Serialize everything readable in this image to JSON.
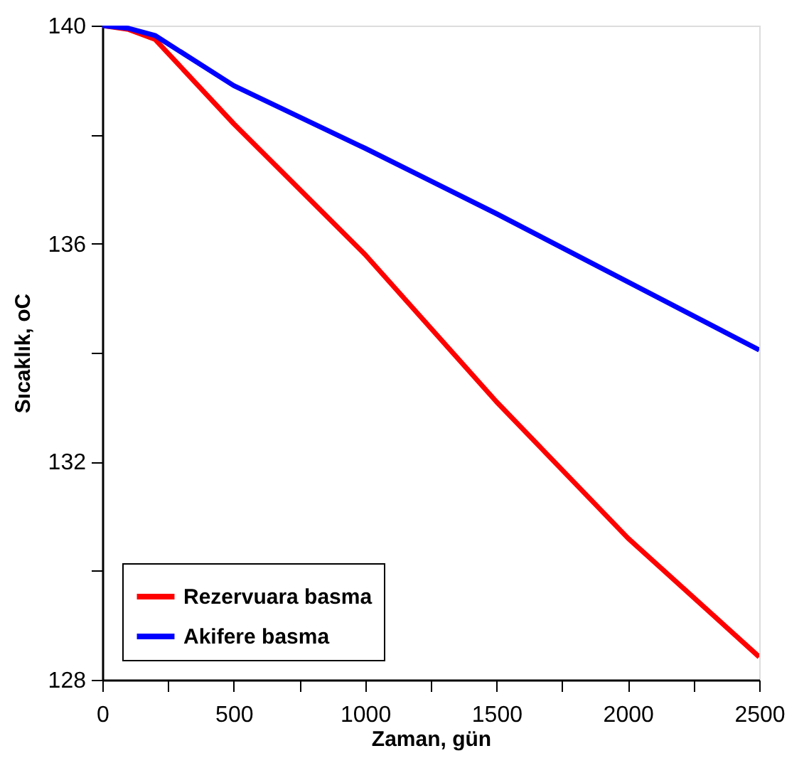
{
  "chart_data": {
    "type": "line",
    "xlabel": "Zaman, gün",
    "ylabel": "Sıcaklık, oC",
    "xlim": [
      0,
      2500
    ],
    "ylim": [
      128,
      140
    ],
    "xticks": [
      0,
      {
        "value": 250,
        "label": null
      },
      500,
      {
        "value": 750,
        "label": null
      },
      1000,
      {
        "value": 1250,
        "label": null
      },
      1500,
      {
        "value": 1750,
        "label": null
      },
      2000,
      {
        "value": 2250,
        "label": null
      },
      2500
    ],
    "yticks": [
      128,
      {
        "value": 130,
        "label": null
      },
      132,
      {
        "value": 134,
        "label": null
      },
      136,
      {
        "value": 138,
        "label": null
      },
      140
    ],
    "grid": false,
    "legend": "bottom left",
    "marker": "none",
    "line_style": "solid",
    "series": [
      {
        "name": "Rezervuara basma",
        "color": "#ff0000",
        "x": [
          0,
          100,
          200,
          500,
          1000,
          1500,
          2000,
          2500
        ],
        "values": [
          140,
          139.93,
          139.75,
          138.2,
          135.8,
          133.1,
          130.6,
          128.42
        ]
      },
      {
        "name": "Akifere basma",
        "color": "#0000ff",
        "x": [
          0,
          100,
          200,
          500,
          1000,
          1500,
          2000,
          2500
        ],
        "values": [
          140,
          139.95,
          139.82,
          138.9,
          137.75,
          136.55,
          135.3,
          134.05
        ]
      }
    ]
  }
}
